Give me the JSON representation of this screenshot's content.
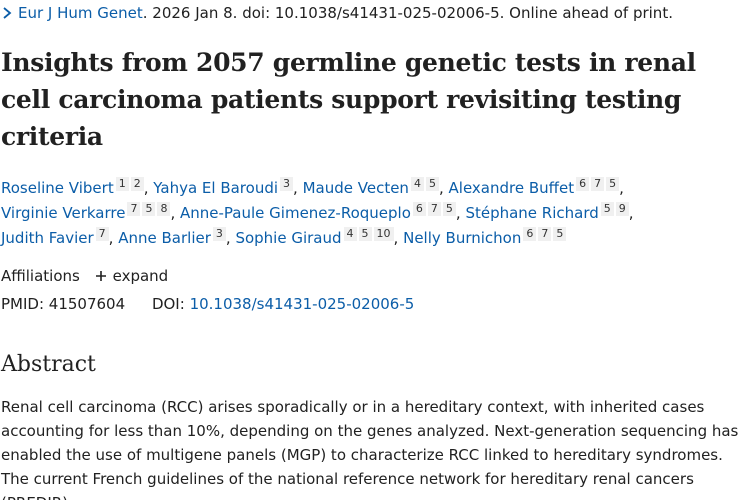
{
  "citation": {
    "journal": "Eur J Hum Genet",
    "rest": ". 2026 Jan 8. doi: 10.1038/s41431-025-02006-5. Online ahead of print."
  },
  "article": {
    "title": "Insights from 2057 germline genetic tests in renal cell carcinoma patients support revisiting testing criteria"
  },
  "authors": [
    {
      "name": "Roseline Vibert",
      "affs": [
        "1",
        "2"
      ]
    },
    {
      "name": "Yahya El Baroudi",
      "affs": [
        "3"
      ]
    },
    {
      "name": "Maude Vecten",
      "affs": [
        "4",
        "5"
      ]
    },
    {
      "name": "Alexandre Buffet",
      "affs": [
        "6",
        "7",
        "5"
      ]
    },
    {
      "name": "Virginie Verkarre",
      "affs": [
        "7",
        "5",
        "8"
      ]
    },
    {
      "name": "Anne-Paule Gimenez-Roqueplo",
      "affs": [
        "6",
        "7",
        "5"
      ]
    },
    {
      "name": "Stéphane Richard",
      "affs": [
        "5",
        "9"
      ]
    },
    {
      "name": "Judith Favier",
      "affs": [
        "7"
      ]
    },
    {
      "name": "Anne Barlier",
      "affs": [
        "3"
      ]
    },
    {
      "name": "Sophie Giraud",
      "affs": [
        "4",
        "5",
        "10"
      ]
    },
    {
      "name": "Nelly Burnichon",
      "affs": [
        "6",
        "7",
        "5"
      ]
    }
  ],
  "affiliations": {
    "label": "Affiliations",
    "expand_label": "expand",
    "expand_icon": "plus-icon"
  },
  "identifiers": {
    "pmid_label": "PMID:",
    "pmid": "41507604",
    "doi_label": "DOI:",
    "doi": "10.1038/s41431-025-02006-5"
  },
  "abstract": {
    "heading": "Abstract",
    "text": "Renal cell carcinoma (RCC) arises sporadically or in a hereditary context, with inherited cases accounting for less than 10%, depending on the genes analyzed. Next-generation sequencing has enabled the use of multigene panels (MGP) to characterize RCC linked to hereditary syndromes. The current French guidelines of the national reference network for hereditary renal cancers (PREDIR)"
  },
  "colors": {
    "link": "#0b5da8",
    "text": "#212121",
    "badge_bg": "#f0f0f0"
  }
}
